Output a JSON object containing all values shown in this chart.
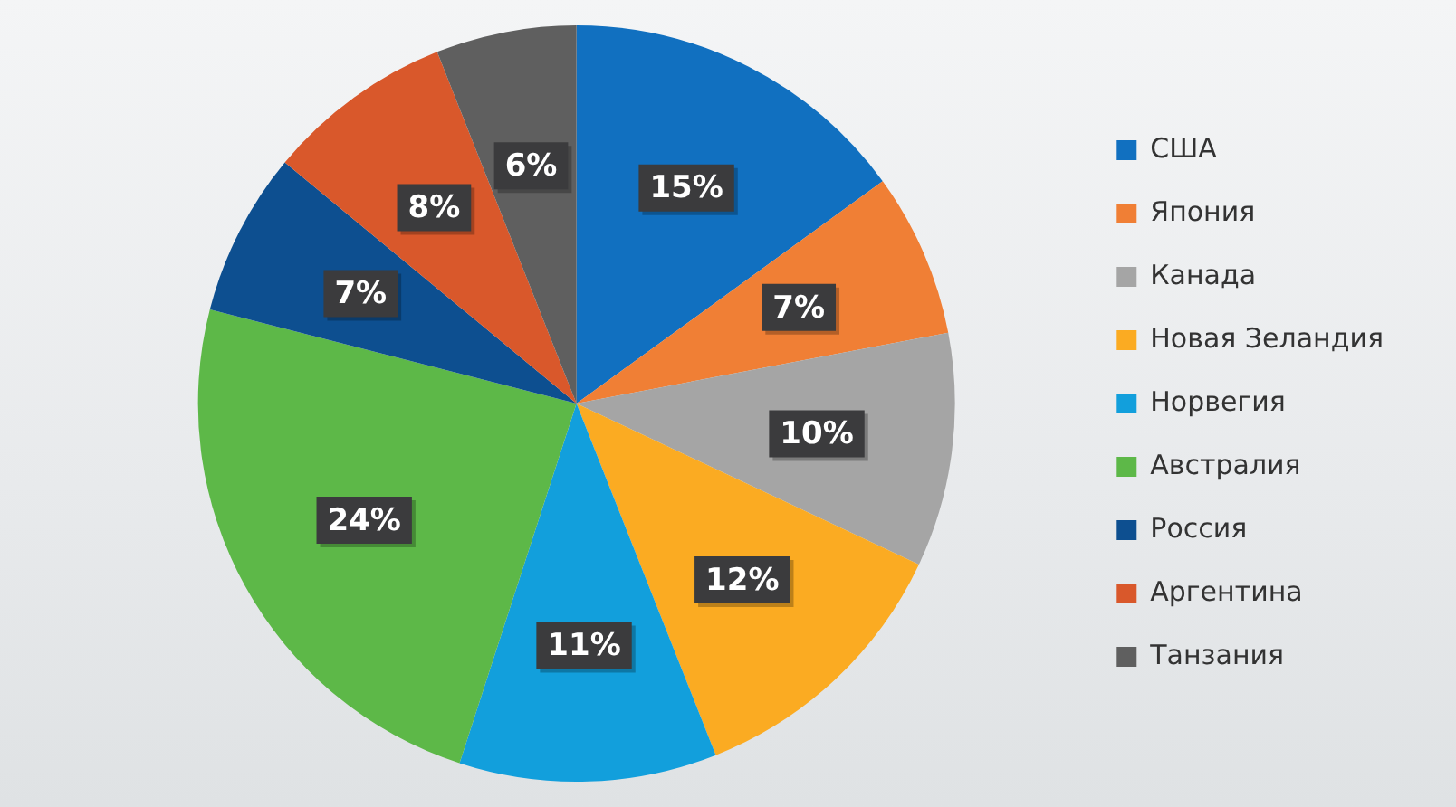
{
  "chart_data": {
    "type": "pie",
    "categories": [
      "США",
      "Япония",
      "Канада",
      "Новая Зеландия",
      "Норвегия",
      "Австралия",
      "Россия",
      "Аргентина",
      "Танзания"
    ],
    "values": [
      15,
      7,
      10,
      12,
      11,
      24,
      7,
      8,
      6
    ],
    "colors": [
      "#1170c0",
      "#f07f35",
      "#a5a5a5",
      "#fbab22",
      "#129fdc",
      "#5db848",
      "#0d4f90",
      "#d9582b",
      "#5f5f5f"
    ],
    "value_labels": [
      "15%",
      "7%",
      "10%",
      "12%",
      "11%",
      "24%",
      "7%",
      "8%",
      "6%"
    ],
    "legend": "right"
  }
}
